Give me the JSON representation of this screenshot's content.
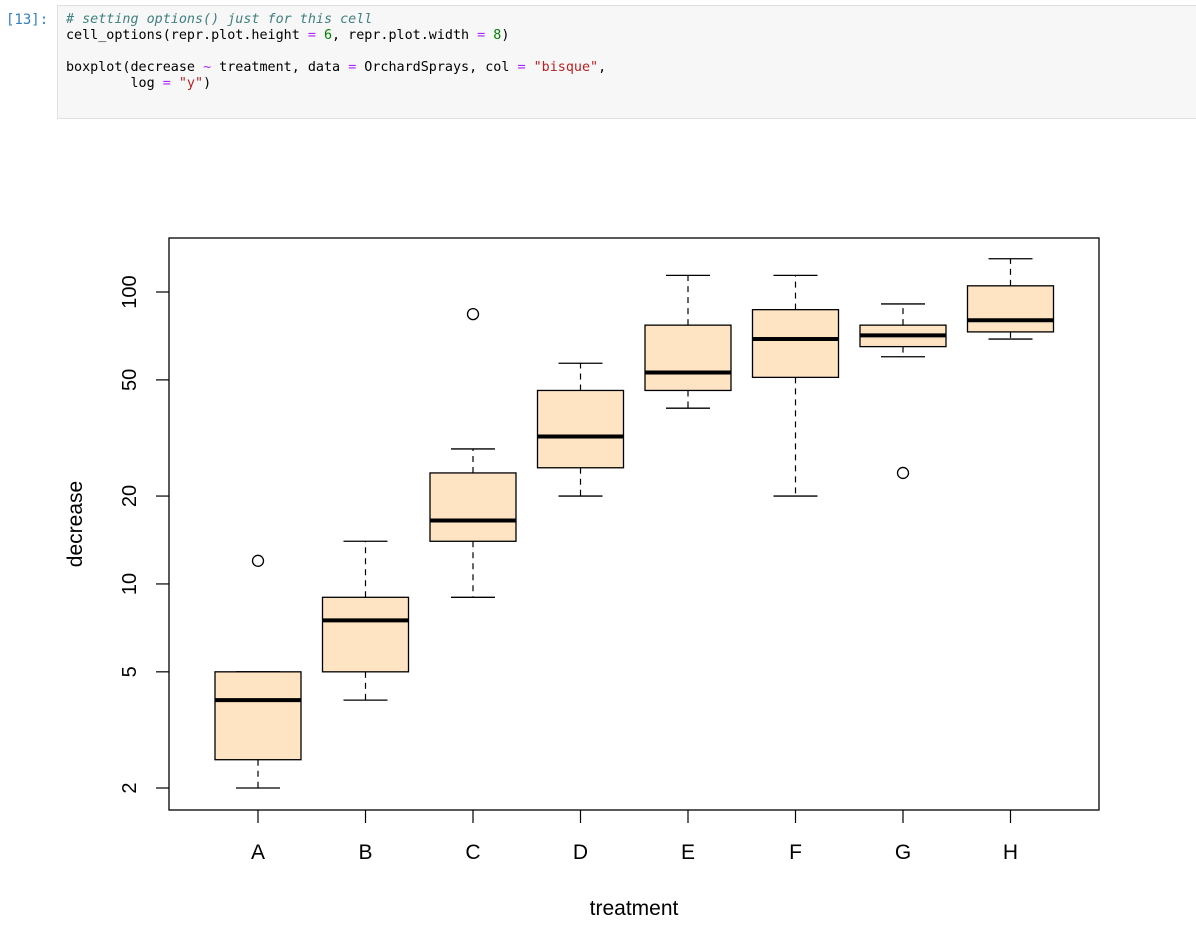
{
  "cell": {
    "prompt": "[13]:",
    "line1": {
      "comment": "# setting options() just for this cell"
    },
    "line2": {
      "fn": "cell_options(repr.plot.height ",
      "eq1": "=",
      "v1": " 6",
      "mid": ", repr.plot.width ",
      "eq2": "=",
      "v2": " 8",
      "end": ")"
    },
    "line4": {
      "fn": "boxplot(decrease ",
      "tilde": "~",
      "mid1": " treatment, data ",
      "eq1": "=",
      "mid2": " OrchardSprays, col ",
      "eq2": "=",
      "str": " \"bisque\"",
      "end": ","
    },
    "line5": {
      "indent": "        log ",
      "eq": "=",
      "str": " \"y\"",
      "end": ")"
    }
  },
  "chart_data": {
    "type": "boxplot",
    "xlabel": "treatment",
    "ylabel": "decrease",
    "y_scale": "log",
    "ylim": [
      1.85,
      150
    ],
    "y_ticks": [
      2,
      5,
      10,
      20,
      50,
      100
    ],
    "y_tick_labels": [
      "2",
      "5",
      "10",
      "20",
      "50",
      "100"
    ],
    "categories": [
      "A",
      "B",
      "C",
      "D",
      "E",
      "F",
      "G",
      "H"
    ],
    "box_color": "#ffe4c4",
    "boxes": [
      {
        "name": "A",
        "whisker_low": 2,
        "q1": 2.5,
        "median": 4,
        "q3": 5,
        "whisker_high": 5,
        "outliers": [
          12
        ]
      },
      {
        "name": "B",
        "whisker_low": 4,
        "q1": 5,
        "median": 7.5,
        "q3": 9,
        "whisker_high": 14,
        "outliers": []
      },
      {
        "name": "C",
        "whisker_low": 9,
        "q1": 14,
        "median": 16.5,
        "q3": 24,
        "whisker_high": 29,
        "outliers": [
          84
        ]
      },
      {
        "name": "D",
        "whisker_low": 20,
        "q1": 25,
        "median": 32,
        "q3": 46,
        "whisker_high": 57,
        "outliers": []
      },
      {
        "name": "E",
        "whisker_low": 40,
        "q1": 46,
        "median": 53,
        "q3": 77,
        "whisker_high": 114,
        "outliers": []
      },
      {
        "name": "F",
        "whisker_low": 20,
        "q1": 51,
        "median": 69,
        "q3": 87,
        "whisker_high": 114,
        "outliers": []
      },
      {
        "name": "G",
        "whisker_low": 60,
        "q1": 65,
        "median": 71,
        "q3": 77,
        "whisker_high": 91,
        "outliers": [
          24
        ]
      },
      {
        "name": "H",
        "whisker_low": 69,
        "q1": 73,
        "median": 80,
        "q3": 105,
        "whisker_high": 130,
        "outliers": []
      }
    ]
  }
}
